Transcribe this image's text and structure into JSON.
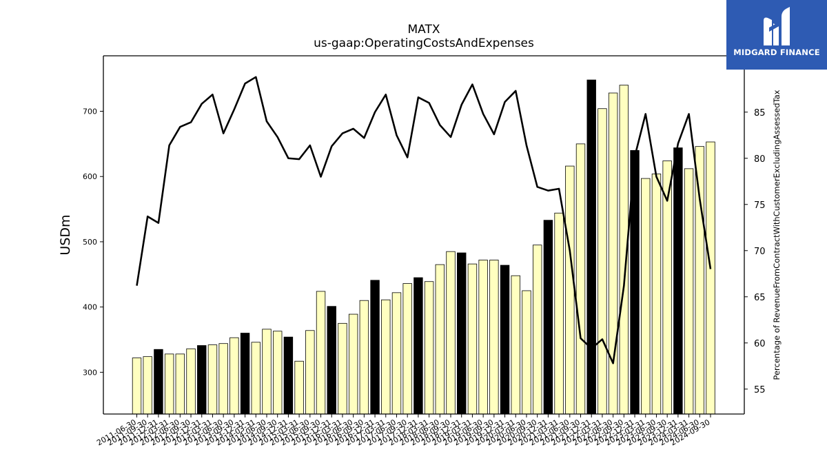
{
  "title": "MATX",
  "subtitle": "us-gaap:OperatingCostsAndExpenses",
  "logo_text": "MIDGARD FINANCE",
  "colors": {
    "bar_fill": "#ffffc0",
    "bar_highlight": "#000000",
    "line": "#000000"
  },
  "chart_data": {
    "type": "bar",
    "ylabel": "USDm",
    "y2label": "Percentage of RevenueFromContractWithCustomerExcludingAssessedTax",
    "ylim": [
      236,
      785
    ],
    "y2lim": [
      52.3,
      91.1
    ],
    "yticks": [
      300,
      400,
      500,
      600,
      700
    ],
    "y2ticks": [
      55,
      60,
      65,
      70,
      75,
      80,
      85
    ],
    "categories": [
      "2011-06-30",
      "2011-09-30",
      "2011-12-31",
      "2012-03-31",
      "2012-06-30",
      "2012-09-30",
      "2012-12-31",
      "2013-03-31",
      "2013-06-30",
      "2013-09-30",
      "2013-12-31",
      "2014-03-31",
      "2014-06-30",
      "2014-09-30",
      "2014-12-31",
      "2015-03-31",
      "2015-06-30",
      "2015-09-30",
      "2015-12-31",
      "2016-03-31",
      "2016-06-30",
      "2016-09-30",
      "2016-12-31",
      "2017-03-31",
      "2017-06-30",
      "2017-09-30",
      "2017-12-31",
      "2018-03-31",
      "2018-06-30",
      "2018-09-30",
      "2018-12-31",
      "2019-03-31",
      "2019-06-30",
      "2019-09-30",
      "2019-12-31",
      "2020-03-31",
      "2020-06-30",
      "2020-09-30",
      "2020-12-31",
      "2021-03-31",
      "2021-06-30",
      "2021-09-30",
      "2021-12-31",
      "2022-03-31",
      "2022-06-30",
      "2022-09-30",
      "2022-12-31",
      "2023-03-31",
      "2023-06-30",
      "2023-09-30",
      "2023-12-31",
      "2024-03-31",
      "2024-06-30",
      "2024-09-30"
    ],
    "series": [
      {
        "type": "bar",
        "values": [
          322,
          324,
          335,
          328,
          328,
          336,
          341,
          342,
          344,
          353,
          360,
          346,
          366,
          363,
          354,
          317,
          364,
          424,
          401,
          375,
          389,
          410,
          441,
          411,
          422,
          436,
          445,
          439,
          465,
          485,
          483,
          466,
          472,
          472,
          464,
          448,
          425,
          495,
          533,
          544,
          616,
          650,
          748,
          704,
          728,
          740,
          640,
          597,
          604,
          624,
          644,
          612,
          646,
          653
        ],
        "highlighted": [
          false,
          false,
          true,
          false,
          false,
          false,
          true,
          false,
          false,
          false,
          true,
          false,
          false,
          false,
          true,
          false,
          false,
          false,
          true,
          false,
          false,
          false,
          true,
          false,
          false,
          false,
          true,
          false,
          false,
          false,
          true,
          false,
          false,
          false,
          true,
          false,
          false,
          false,
          true,
          false,
          false,
          false,
          true,
          false,
          false,
          false,
          true,
          false,
          false,
          false,
          true,
          false,
          false,
          false
        ]
      },
      {
        "type": "line",
        "axis": "right",
        "values": [
          66.2,
          73.7,
          73.0,
          81.4,
          83.4,
          83.9,
          85.9,
          86.9,
          82.7,
          85.3,
          88.1,
          88.8,
          84.0,
          82.3,
          80.0,
          79.9,
          81.4,
          78.0,
          81.3,
          82.7,
          83.2,
          82.2,
          85.0,
          86.9,
          82.5,
          80.1,
          86.6,
          86.0,
          83.6,
          82.3,
          85.8,
          88.0,
          84.8,
          82.6,
          86.1,
          87.3,
          81.4,
          76.9,
          76.5,
          76.7,
          70.0,
          60.5,
          59.4,
          60.4,
          57.8,
          66.2,
          80.2,
          84.8,
          78.0,
          75.4,
          81.6,
          84.8,
          75.6,
          68.0
        ]
      }
    ]
  }
}
